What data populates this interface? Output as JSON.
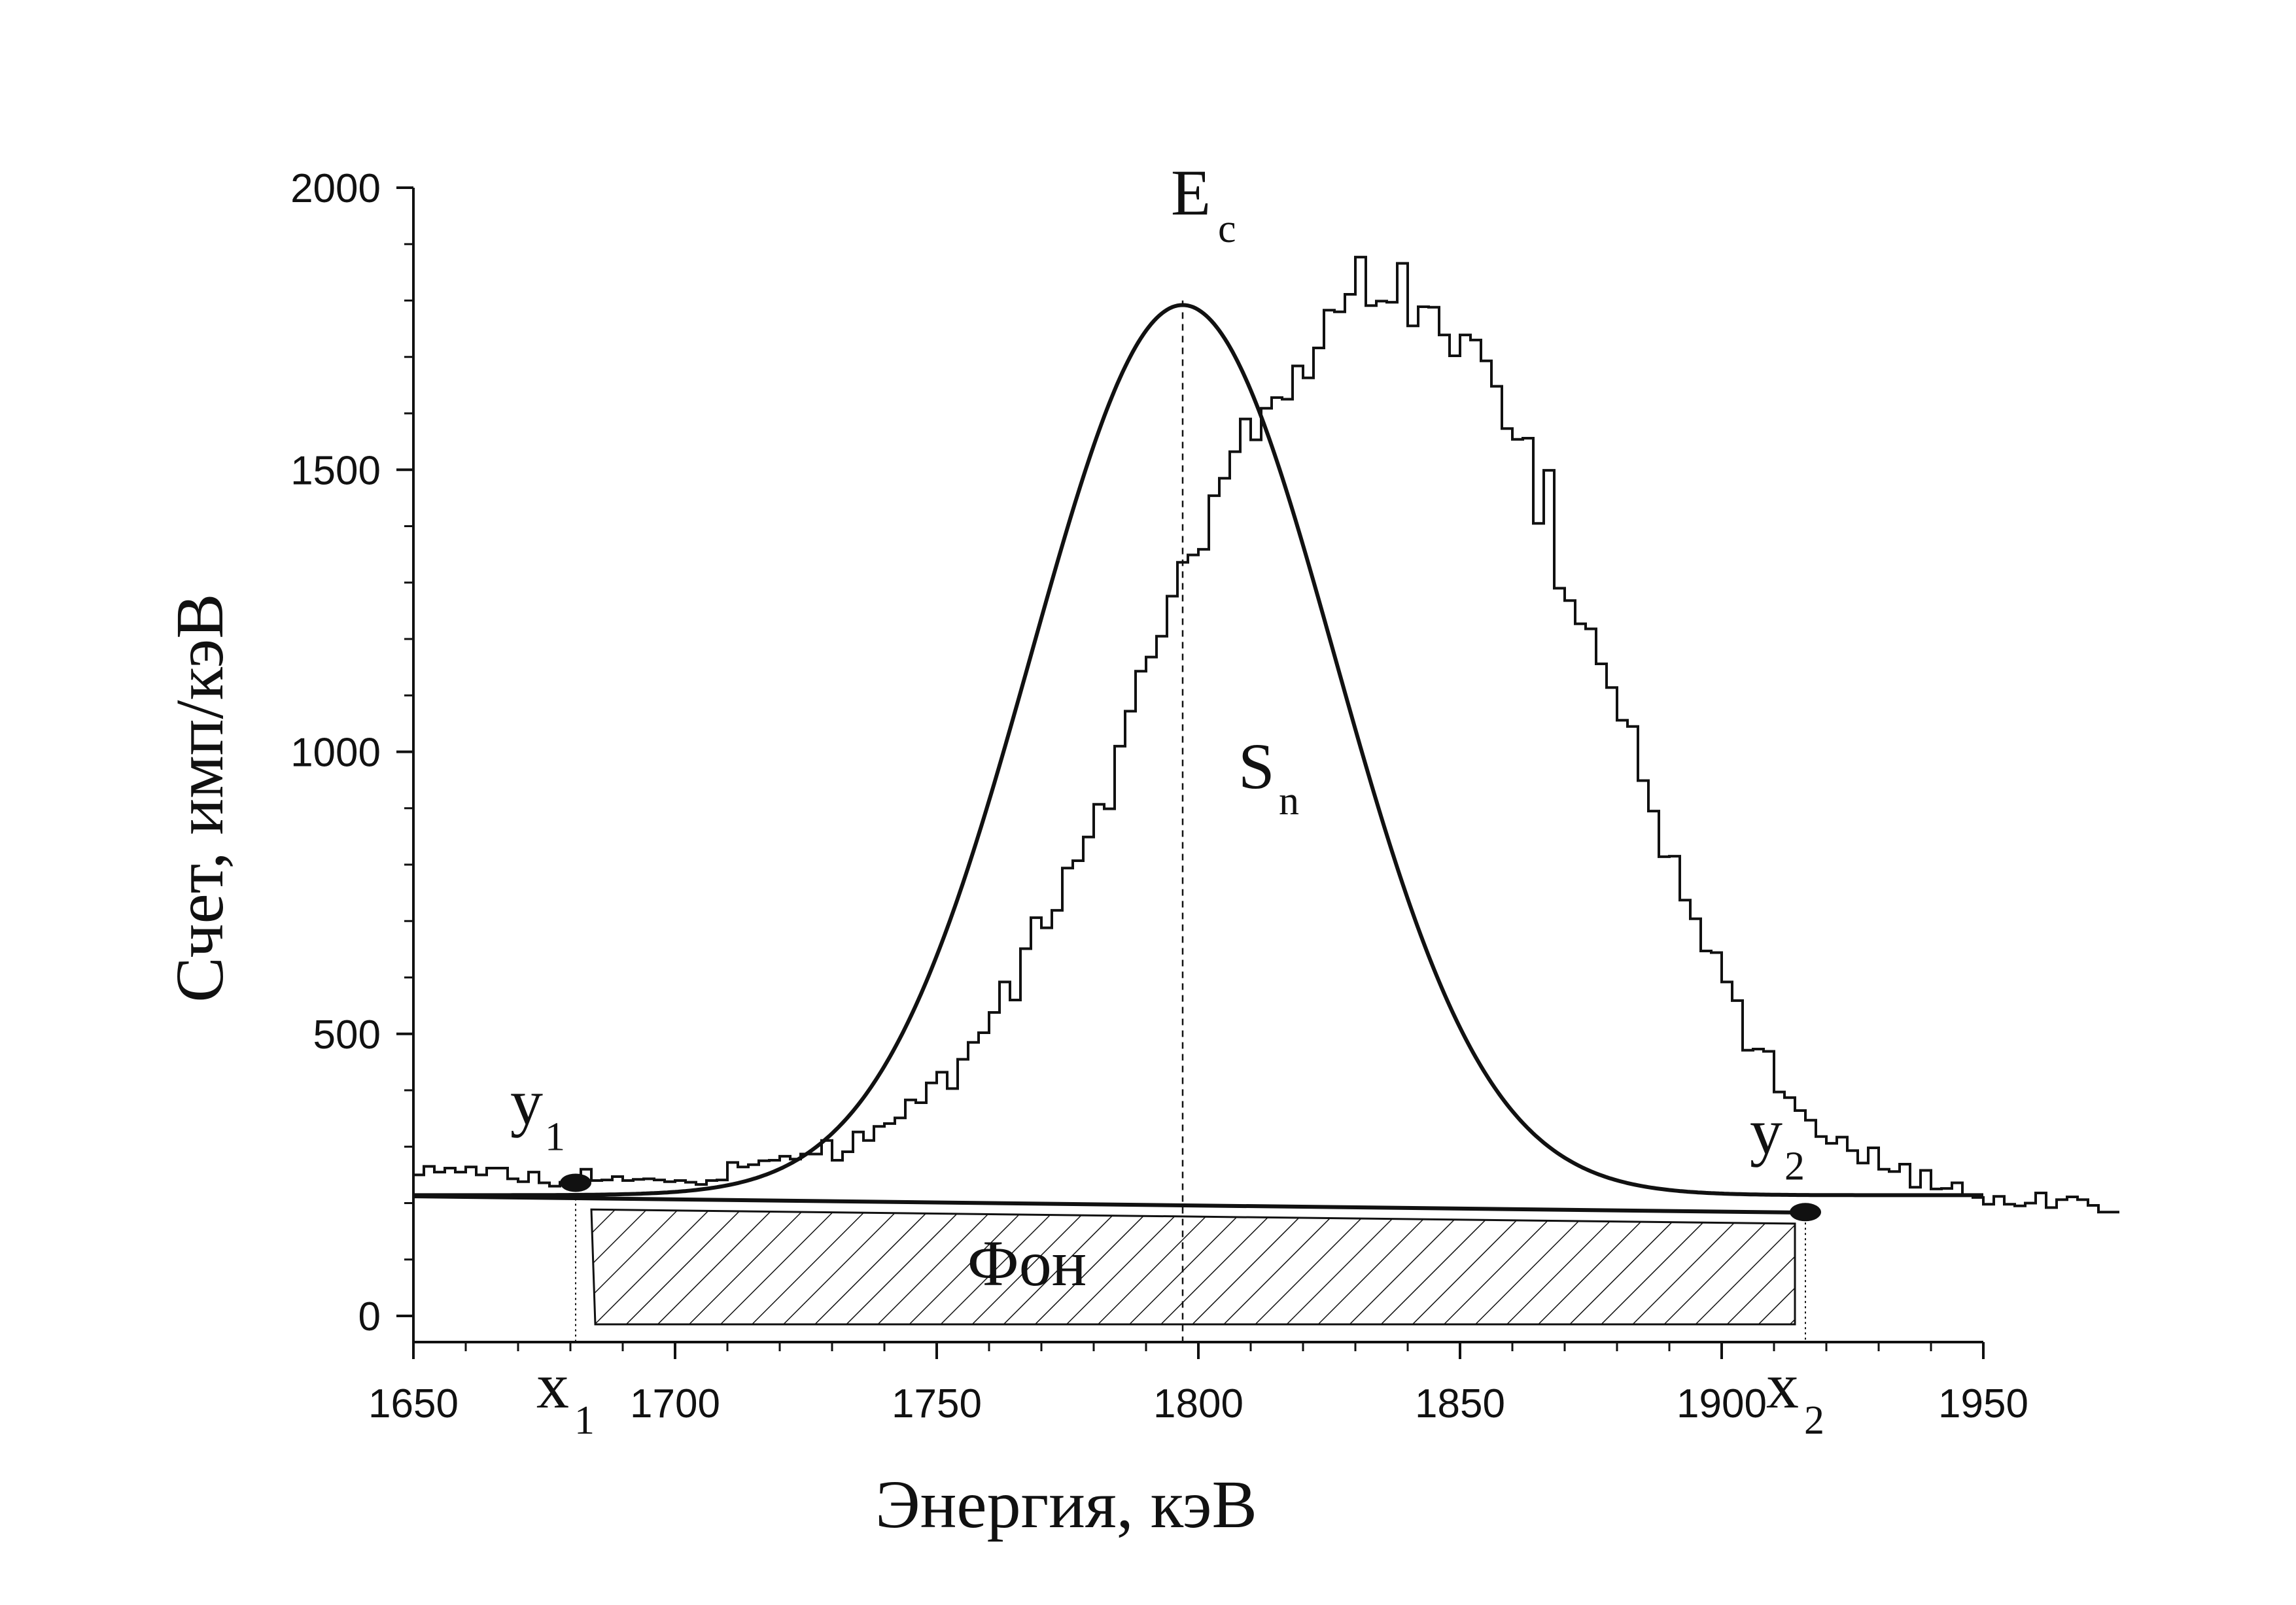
{
  "chart_data": {
    "type": "line",
    "xlabel": "Энергия, кэВ",
    "ylabel": "Счет, имп/кэВ",
    "xlim": [
      1650,
      1950
    ],
    "ylim": [
      -50,
      2000
    ],
    "xticks": [
      {
        "value": 1650,
        "label": "1650"
      },
      {
        "value": 1700,
        "label": "1700"
      },
      {
        "value": 1750,
        "label": "1750"
      },
      {
        "value": 1800,
        "label": "1800"
      },
      {
        "value": 1850,
        "label": "1850"
      },
      {
        "value": 1900,
        "label": "1900"
      },
      {
        "value": 1950,
        "label": "1950"
      }
    ],
    "yticks": [
      {
        "value": 0,
        "label": "0"
      },
      {
        "value": 500,
        "label": "500"
      },
      {
        "value": 1000,
        "label": "1000"
      },
      {
        "value": 1500,
        "label": "1500"
      },
      {
        "value": 2000,
        "label": "2000"
      }
    ],
    "grid": false,
    "histogram": {
      "x_start": 1650,
      "bin_width": 2,
      "counts": [
        250,
        265,
        255,
        262,
        255,
        264,
        250,
        262,
        262,
        243,
        238,
        255,
        236,
        230,
        237,
        232,
        260,
        240,
        241,
        247,
        240,
        242,
        243,
        241,
        238,
        240,
        237,
        233,
        240,
        241,
        272,
        264,
        268,
        275,
        276,
        283,
        278,
        287,
        287,
        311,
        276,
        291,
        326,
        311,
        336,
        341,
        351,
        383,
        378,
        413,
        432,
        403,
        455,
        485,
        502,
        538,
        592,
        560,
        651,
        706,
        688,
        719,
        794,
        807,
        849,
        907,
        899,
        1010,
        1072,
        1143,
        1168,
        1205,
        1276,
        1336,
        1349,
        1359,
        1454,
        1485,
        1532,
        1590,
        1553,
        1609,
        1628,
        1625,
        1684,
        1663,
        1716,
        1783,
        1780,
        1811,
        1877,
        1791,
        1799,
        1797,
        1866,
        1755,
        1789,
        1788,
        1739,
        1702,
        1739,
        1730,
        1693,
        1648,
        1573,
        1554,
        1556,
        1405,
        1499,
        1290,
        1268,
        1227,
        1218,
        1156,
        1114,
        1056,
        1045,
        949,
        895,
        814,
        815,
        737,
        704,
        647,
        644,
        592,
        559,
        471,
        473,
        469,
        397,
        387,
        364,
        347,
        318,
        306,
        317,
        293,
        271,
        298,
        260,
        256,
        269,
        228,
        258,
        225,
        226,
        236,
        215,
        210,
        198,
        212,
        198,
        195,
        200,
        218,
        192,
        206,
        211,
        206,
        196,
        184,
        184
      ]
    },
    "fit": {
      "type": "gaussian",
      "center": 1797,
      "amplitude": 1578,
      "sigma": 29,
      "background_start": 214,
      "background_end": 214
    },
    "background_line": {
      "x": [
        1650,
        1917
      ],
      "y": [
        212,
        183
      ]
    },
    "center_line_x": 1797,
    "background_region": {
      "x_start": 1684,
      "x_end": 1914,
      "label": "Фон"
    },
    "markers": [
      {
        "x": 1681,
        "y": 236,
        "label": "y",
        "sub": "1",
        "xlabel": "x",
        "xsub": "1"
      },
      {
        "x": 1916,
        "y": 184,
        "label": "y",
        "sub": "2",
        "xlabel": "x",
        "xsub": "2"
      }
    ],
    "annotations": [
      {
        "text": "E",
        "sub": "c"
      },
      {
        "text": "S",
        "sub": "n"
      }
    ]
  }
}
